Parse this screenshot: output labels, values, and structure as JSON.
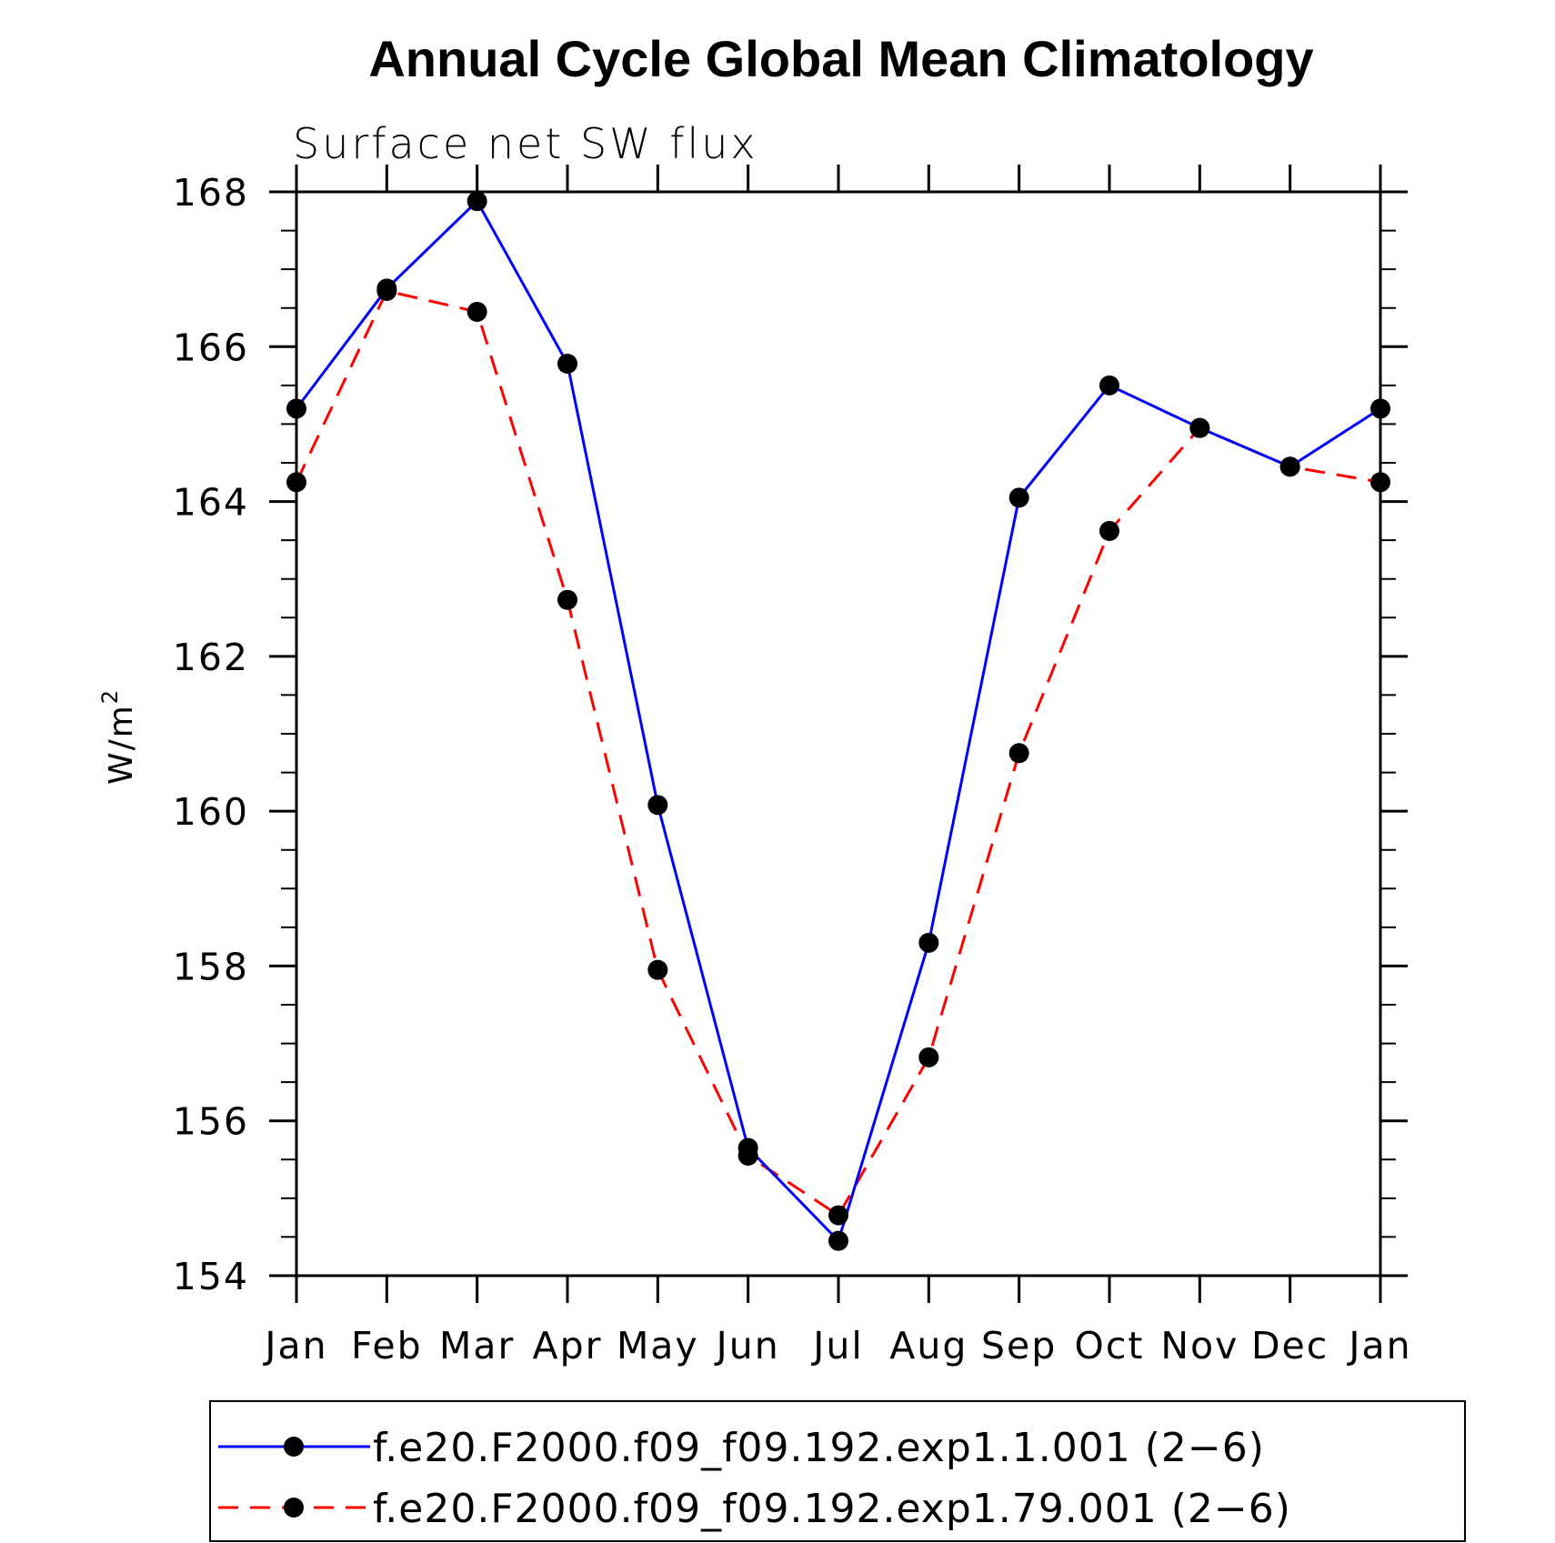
{
  "chart_data": {
    "type": "line",
    "title": "Annual Cycle Global Mean Climatology",
    "subtitle": "Surface net SW flux",
    "ylabel": "W/m",
    "ylabel_superscript": "2",
    "xlabel": "",
    "categories": [
      "Jan",
      "Feb",
      "Mar",
      "Apr",
      "May",
      "Jun",
      "Jul",
      "Aug",
      "Sep",
      "Oct",
      "Nov",
      "Dec",
      "Jan"
    ],
    "ylim": [
      154,
      168
    ],
    "yticks": [
      154,
      156,
      158,
      160,
      162,
      164,
      166,
      168
    ],
    "y_minor_step": 0.5,
    "grid": false,
    "legend_position": "bottom",
    "series": [
      {
        "name": "f.e20.F2000.f09_f09.192.exp1.1.001 (2−6)",
        "color": "#0000ff",
        "dash": "solid",
        "marker": "filled-circle",
        "values": [
          165.2,
          166.75,
          167.88,
          165.78,
          160.08,
          155.65,
          154.45,
          158.3,
          164.05,
          165.5,
          164.95,
          164.45,
          165.2
        ]
      },
      {
        "name": "f.e20.F2000.f09_f09.192.exp1.79.001 (2−6)",
        "color": "#ff0000",
        "dash": "dashed",
        "marker": "filled-circle",
        "values": [
          164.25,
          166.72,
          166.45,
          162.73,
          157.95,
          155.55,
          154.78,
          156.82,
          160.75,
          163.62,
          164.95,
          164.45,
          164.25
        ]
      }
    ]
  }
}
